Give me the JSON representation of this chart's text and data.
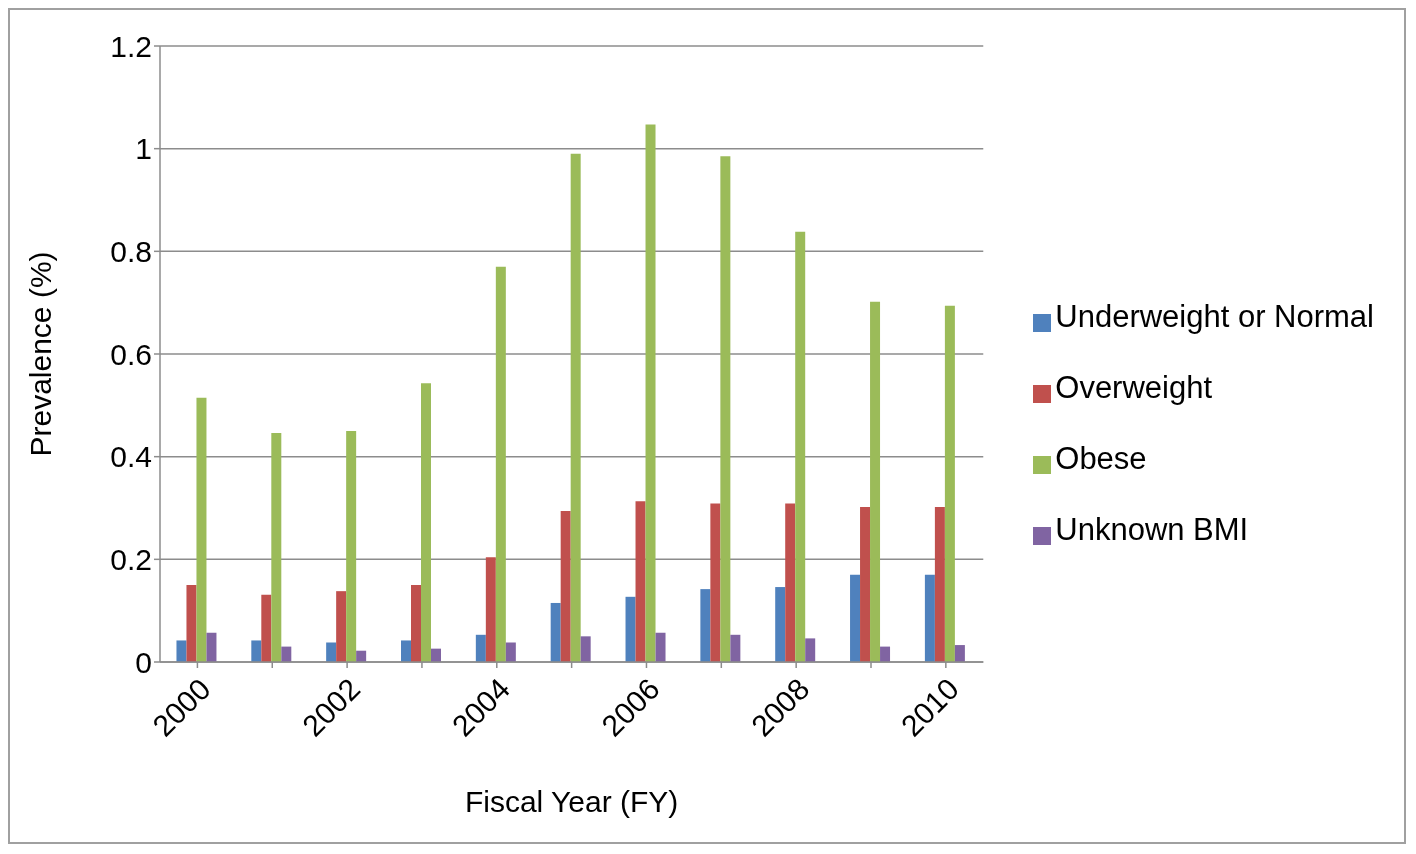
{
  "chart_data": {
    "type": "bar",
    "xlabel": "Fiscal Year (FY)",
    "ylabel": "Prevalence (%)",
    "categories": [
      "2000",
      null,
      "2002",
      null,
      "2004",
      null,
      "2006",
      null,
      "2008",
      null,
      "2010"
    ],
    "series": [
      {
        "name": "Underweight or Normal",
        "color": "#4f81bd",
        "values": [
          0.042,
          0.042,
          0.038,
          0.042,
          0.053,
          0.115,
          0.127,
          0.142,
          0.146,
          0.17,
          0.17
        ]
      },
      {
        "name": "Overweight",
        "color": "#c0504d",
        "values": [
          0.15,
          0.131,
          0.138,
          0.15,
          0.204,
          0.294,
          0.313,
          0.309,
          0.309,
          0.302,
          0.302
        ]
      },
      {
        "name": "Obese",
        "color": "#9bbb59",
        "values": [
          0.515,
          0.446,
          0.45,
          0.543,
          0.77,
          0.99,
          1.047,
          0.985,
          0.838,
          0.702,
          0.694
        ]
      },
      {
        "name": "Unknown BMI",
        "color": "#8064a2",
        "values": [
          0.057,
          0.03,
          0.022,
          0.026,
          0.038,
          0.05,
          0.057,
          0.053,
          0.046,
          0.03,
          0.033
        ]
      }
    ],
    "ylim": [
      0,
      1.2
    ],
    "yticks": [
      0,
      0.2,
      0.4,
      0.6,
      0.8,
      1,
      {
        "value": 1.2,
        "label": "1.2"
      }
    ],
    "grid": "y",
    "legend": "right"
  }
}
